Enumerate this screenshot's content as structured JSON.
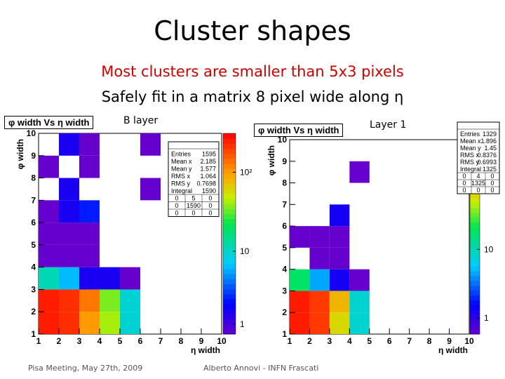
{
  "slide": {
    "title": "Cluster shapes",
    "subtitle_lines": [
      {
        "text": "Most clusters are smaller than 5x3 pixels",
        "color": "#cc0000"
      },
      {
        "text": "Safely fit in a matrix 8 pixel wide along η",
        "color": "#000000"
      }
    ],
    "footer_left": "Pisa Meeting, May 27th, 2009",
    "footer_center": "Alberto Annovi - INFN Frascati"
  },
  "chart_data": [
    {
      "type": "heatmap",
      "panel_label": "B layer",
      "title": "φ width Vs η width",
      "xlabel": "η width",
      "ylabel": "φ width",
      "xlim": [
        1,
        10
      ],
      "ylim": [
        1,
        10
      ],
      "x_ticks": [
        1,
        2,
        3,
        4,
        5,
        6,
        7,
        8,
        9,
        10
      ],
      "y_ticks": [
        1,
        2,
        3,
        4,
        5,
        6,
        7,
        8,
        9,
        10
      ],
      "z_ticks": [
        "1",
        "10",
        "10²"
      ],
      "z_log": true,
      "cells": [
        {
          "x": 1,
          "y": 1,
          "count": 400
        },
        {
          "x": 2,
          "y": 1,
          "count": 350
        },
        {
          "x": 3,
          "y": 1,
          "count": 150
        },
        {
          "x": 4,
          "y": 1,
          "count": 60
        },
        {
          "x": 5,
          "y": 1,
          "count": 12
        },
        {
          "x": 1,
          "y": 2,
          "count": 400
        },
        {
          "x": 2,
          "y": 2,
          "count": 350
        },
        {
          "x": 3,
          "y": 2,
          "count": 200
        },
        {
          "x": 4,
          "y": 2,
          "count": 50
        },
        {
          "x": 5,
          "y": 2,
          "count": 12
        },
        {
          "x": 1,
          "y": 3,
          "count": 15
        },
        {
          "x": 2,
          "y": 3,
          "count": 8
        },
        {
          "x": 3,
          "y": 3,
          "count": 2
        },
        {
          "x": 4,
          "y": 3,
          "count": 2
        },
        {
          "x": 5,
          "y": 3,
          "count": 1
        },
        {
          "x": 1,
          "y": 4,
          "count": 1
        },
        {
          "x": 2,
          "y": 4,
          "count": 1
        },
        {
          "x": 3,
          "y": 4,
          "count": 1
        },
        {
          "x": 1,
          "y": 5,
          "count": 1
        },
        {
          "x": 2,
          "y": 5,
          "count": 1
        },
        {
          "x": 3,
          "y": 5,
          "count": 1
        },
        {
          "x": 1,
          "y": 6,
          "count": 1
        },
        {
          "x": 2,
          "y": 6,
          "count": 2
        },
        {
          "x": 3,
          "y": 6,
          "count": 3
        },
        {
          "x": 2,
          "y": 7,
          "count": 2
        },
        {
          "x": 6,
          "y": 7,
          "count": 1
        },
        {
          "x": 1,
          "y": 8,
          "count": 1
        },
        {
          "x": 3,
          "y": 8,
          "count": 1
        },
        {
          "x": 2,
          "y": 9,
          "count": 2
        },
        {
          "x": 3,
          "y": 9,
          "count": 1
        },
        {
          "x": 6,
          "y": 9,
          "count": 1
        }
      ],
      "stats": {
        "name": "",
        "rows": [
          [
            "Entries",
            "1595"
          ],
          [
            "Mean x",
            "2.185"
          ],
          [
            "Mean y",
            "1.577"
          ],
          [
            "RMS x",
            "1.064"
          ],
          [
            "RMS y",
            "0.7698"
          ],
          [
            "Integral",
            "1590"
          ]
        ],
        "grid": [
          [
            "0",
            "5",
            "0"
          ],
          [
            "0",
            "1590",
            "0"
          ],
          [
            "0",
            "0",
            "0"
          ]
        ]
      }
    },
    {
      "type": "heatmap",
      "panel_label": "Layer 1",
      "title": "φ width Vs η width",
      "xlabel": "η width",
      "ylabel": "φ width",
      "xlim": [
        1,
        10
      ],
      "ylim": [
        1,
        10
      ],
      "x_ticks": [
        1,
        2,
        3,
        4,
        5,
        6,
        7,
        8,
        9,
        10
      ],
      "y_ticks": [
        1,
        2,
        3,
        4,
        5,
        6,
        7,
        8,
        9,
        10
      ],
      "z_ticks": [
        "1",
        "10"
      ],
      "z_log": true,
      "cells": [
        {
          "x": 1,
          "y": 1,
          "count": 250
        },
        {
          "x": 2,
          "y": 1,
          "count": 200
        },
        {
          "x": 3,
          "y": 1,
          "count": 60
        },
        {
          "x": 4,
          "y": 1,
          "count": 10
        },
        {
          "x": 1,
          "y": 2,
          "count": 250
        },
        {
          "x": 2,
          "y": 2,
          "count": 200
        },
        {
          "x": 3,
          "y": 2,
          "count": 80
        },
        {
          "x": 4,
          "y": 2,
          "count": 10
        },
        {
          "x": 1,
          "y": 3,
          "count": 20
        },
        {
          "x": 2,
          "y": 3,
          "count": 6
        },
        {
          "x": 3,
          "y": 3,
          "count": 2
        },
        {
          "x": 4,
          "y": 3,
          "count": 1
        },
        {
          "x": 2,
          "y": 4,
          "count": 1
        },
        {
          "x": 3,
          "y": 4,
          "count": 1
        },
        {
          "x": 1,
          "y": 5,
          "count": 1
        },
        {
          "x": 2,
          "y": 5,
          "count": 1
        },
        {
          "x": 3,
          "y": 5,
          "count": 1
        },
        {
          "x": 3,
          "y": 6,
          "count": 2
        },
        {
          "x": 4,
          "y": 8,
          "count": 1
        },
        {
          "x": 3,
          "y": 10,
          "count": 1
        },
        {
          "x": 5,
          "y": 10,
          "count": 1
        }
      ],
      "stats": {
        "name": "",
        "rows": [
          [
            "Entries",
            "1329"
          ],
          [
            "Mean x",
            "1.896"
          ],
          [
            "Mean y",
            "1.45"
          ],
          [
            "RMS x",
            "0.8376"
          ],
          [
            "RMS y",
            "0.6993"
          ],
          [
            "Integral",
            "1325"
          ]
        ],
        "grid": [
          [
            "0",
            "4",
            "0"
          ],
          [
            "0",
            "1325",
            "0"
          ],
          [
            "0",
            "0",
            "0"
          ]
        ]
      }
    }
  ]
}
